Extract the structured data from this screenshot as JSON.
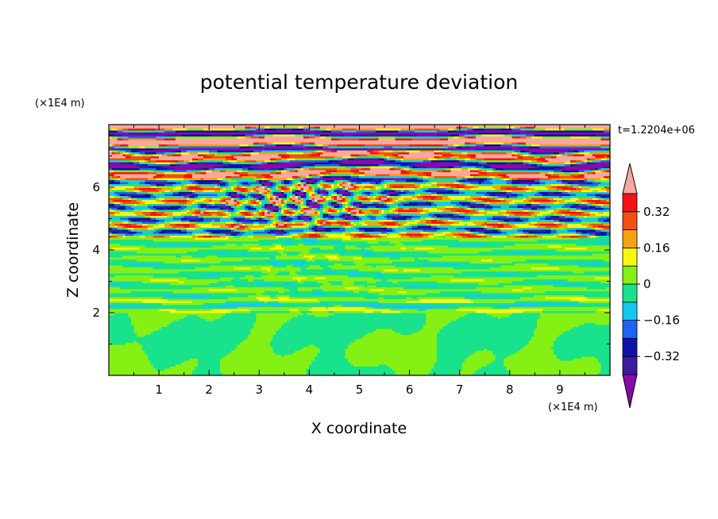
{
  "chart_data": {
    "type": "heatmap",
    "title": "potential temperature deviation",
    "xlabel": "X coordinate",
    "ylabel": "Z coordinate",
    "x_units": "(×1E4 m)",
    "y_units": "(×1E4 m)",
    "time_label": "t=1.2204e+06",
    "xlim": [
      0,
      10
    ],
    "ylim": [
      0,
      8
    ],
    "x_ticks": [
      1,
      2,
      3,
      4,
      5,
      6,
      7,
      8,
      9
    ],
    "x_tick_labels": [
      "1",
      "2",
      "3",
      "4",
      "5",
      "6",
      "7",
      "8",
      "9"
    ],
    "y_ticks": [
      2,
      4,
      6
    ],
    "y_tick_labels": [
      "2",
      "4",
      "6"
    ],
    "colorbar": {
      "levels": [
        -0.4,
        -0.32,
        -0.24,
        -0.16,
        -0.08,
        0,
        0.08,
        0.16,
        0.24,
        0.32,
        0.4
      ],
      "colors": [
        "#8a0aa8",
        "#3e1a9e",
        "#1010a8",
        "#1e64f0",
        "#14c8f0",
        "#18e28c",
        "#84f014",
        "#f8f80e",
        "#f8a010",
        "#f05014",
        "#f21414",
        "#f8a8a0"
      ],
      "tick_values": [
        0.32,
        0.16,
        0,
        -0.16,
        -0.32
      ],
      "tick_labels": [
        "0.32",
        "0.16",
        "0",
        "−0.16",
        "−0.32"
      ],
      "extend": "both"
    },
    "field_description_by_height": [
      {
        "z_range": [
          0,
          2
        ],
        "dominant_values": [
          -0.08,
          0.08
        ]
      },
      {
        "z_range": [
          2,
          4.4
        ],
        "dominant_values": [
          -0.16,
          0.16
        ]
      },
      {
        "z_range": [
          4.4,
          6.2
        ],
        "dominant_values": [
          -0.4,
          0.4
        ]
      },
      {
        "z_range": [
          6.2,
          8
        ],
        "dominant_values": [
          -0.4,
          0.4
        ]
      }
    ]
  }
}
